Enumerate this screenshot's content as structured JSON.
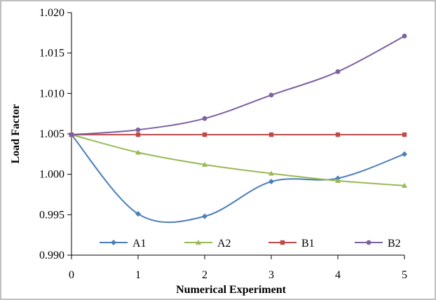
{
  "chart_data": {
    "type": "line",
    "title": "",
    "xlabel": "Numerical Experiment",
    "ylabel": "Load Factor",
    "x": [
      0,
      1,
      2,
      3,
      4,
      5
    ],
    "xlim": [
      0,
      5
    ],
    "ylim": [
      0.99,
      1.02
    ],
    "xticks": [
      "0",
      "1",
      "2",
      "3",
      "4",
      "5"
    ],
    "yticks": [
      "0.990",
      "0.995",
      "1.000",
      "1.005",
      "1.010",
      "1.015",
      "1.020"
    ],
    "smooth": true,
    "grid": false,
    "legend_position": "bottom",
    "series": [
      {
        "name": "A1",
        "color": "#4a7ebb",
        "marker": "diamond",
        "values": [
          1.0049,
          0.9951,
          0.9948,
          0.9991,
          0.9995,
          1.0025
        ]
      },
      {
        "name": "A2",
        "color": "#98b954",
        "marker": "triangle",
        "values": [
          1.0049,
          1.0027,
          1.0012,
          1.0001,
          0.9992,
          0.9986
        ]
      },
      {
        "name": "B1",
        "color": "#be4b48",
        "marker": "square",
        "values": [
          1.0049,
          1.0049,
          1.0049,
          1.0049,
          1.0049,
          1.0049
        ]
      },
      {
        "name": "B2",
        "color": "#7d60a0",
        "marker": "circle",
        "values": [
          1.0049,
          1.0055,
          1.0069,
          1.0098,
          1.0127,
          1.0171
        ]
      }
    ]
  }
}
